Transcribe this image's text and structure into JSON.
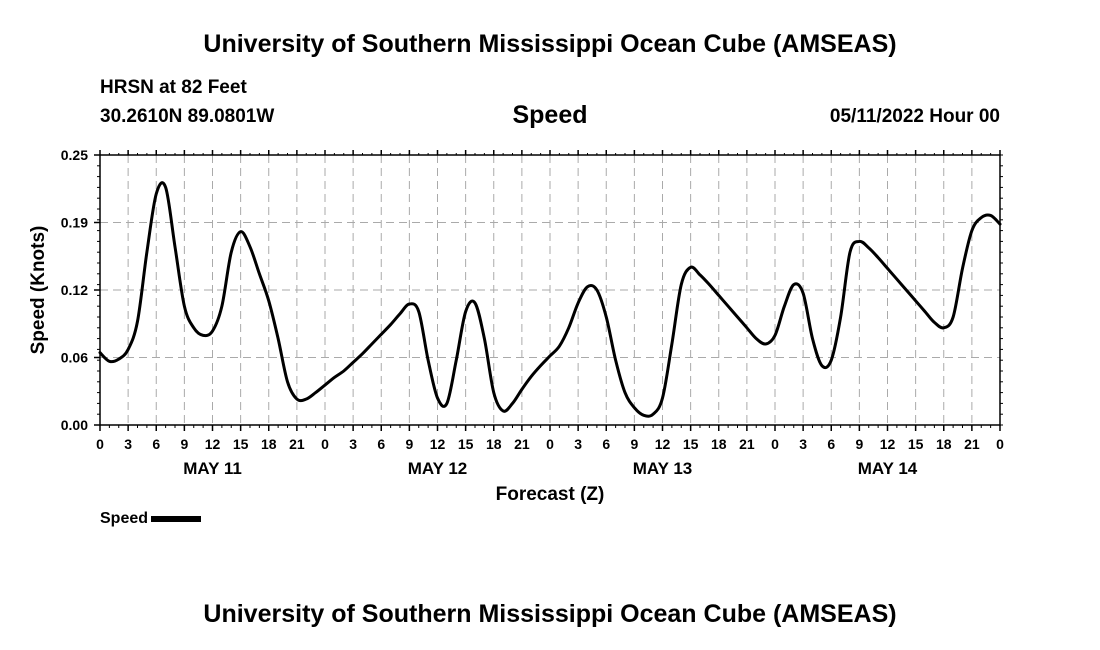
{
  "header": {
    "title": "University of Southern Mississippi Ocean Cube (AMSEAS)",
    "station": "HRSN at 82 Feet",
    "coords": "30.2610N  89.0801W",
    "variable": "Speed",
    "datetime": "05/11/2022 Hour 00"
  },
  "footer": {
    "title": "University of Southern Mississippi Ocean Cube (AMSEAS)"
  },
  "legend": {
    "label": "Speed"
  },
  "chart_data": {
    "type": "line",
    "title": "Speed",
    "xlabel": "Forecast (Z)",
    "ylabel": "Speed (Knots)",
    "xlim": [
      0,
      96
    ],
    "ylim": [
      0,
      0.25
    ],
    "yticks": [
      "0.00",
      "0.06",
      "0.12",
      "0.19",
      "0.25"
    ],
    "ytick_values": [
      0.0,
      0.0625,
      0.125,
      0.1875,
      0.25
    ],
    "xtick_labels": [
      "0",
      "3",
      "6",
      "9",
      "12",
      "15",
      "18",
      "21",
      "0",
      "3",
      "6",
      "9",
      "12",
      "15",
      "18",
      "21",
      "0",
      "3",
      "6",
      "9",
      "12",
      "15",
      "18",
      "21",
      "0",
      "3",
      "6",
      "9",
      "12",
      "15",
      "18",
      "21",
      "0"
    ],
    "day_labels": [
      {
        "label": "MAY 11",
        "hour": 12
      },
      {
        "label": "MAY 12",
        "hour": 36
      },
      {
        "label": "MAY 13",
        "hour": 60
      },
      {
        "label": "MAY 14",
        "hour": 84
      }
    ],
    "grid": true,
    "series": [
      {
        "name": "Speed",
        "x": [
          0,
          1,
          2,
          3,
          4,
          5,
          6,
          7,
          8,
          9,
          10,
          11,
          12,
          13,
          14,
          15,
          16,
          17,
          18,
          19,
          20,
          21,
          22,
          23,
          24,
          25,
          26,
          27,
          28,
          29,
          30,
          31,
          32,
          33,
          34,
          35,
          36,
          37,
          38,
          39,
          40,
          41,
          42,
          43,
          44,
          45,
          46,
          47,
          48,
          49,
          50,
          51,
          52,
          53,
          54,
          55,
          56,
          57,
          58,
          59,
          60,
          61,
          62,
          63,
          64,
          65,
          66,
          67,
          68,
          69,
          70,
          71,
          72,
          73,
          74,
          75,
          76,
          77,
          78,
          79,
          80,
          81,
          82,
          83,
          84,
          85,
          86,
          87,
          88,
          89,
          90,
          91,
          92,
          93,
          94,
          95,
          96
        ],
        "values": [
          0.067,
          0.059,
          0.061,
          0.07,
          0.096,
          0.16,
          0.214,
          0.22,
          0.165,
          0.11,
          0.09,
          0.083,
          0.087,
          0.11,
          0.16,
          0.179,
          0.165,
          0.14,
          0.115,
          0.08,
          0.04,
          0.024,
          0.024,
          0.03,
          0.037,
          0.044,
          0.05,
          0.058,
          0.066,
          0.075,
          0.084,
          0.093,
          0.103,
          0.112,
          0.105,
          0.06,
          0.025,
          0.02,
          0.06,
          0.105,
          0.113,
          0.08,
          0.03,
          0.013,
          0.02,
          0.033,
          0.045,
          0.055,
          0.064,
          0.073,
          0.09,
          0.113,
          0.128,
          0.125,
          0.1,
          0.06,
          0.03,
          0.016,
          0.009,
          0.01,
          0.025,
          0.075,
          0.13,
          0.146,
          0.139,
          0.13,
          0.12,
          0.11,
          0.1,
          0.09,
          0.08,
          0.075,
          0.083,
          0.11,
          0.13,
          0.122,
          0.08,
          0.055,
          0.06,
          0.1,
          0.16,
          0.17,
          0.164,
          0.155,
          0.145,
          0.135,
          0.125,
          0.115,
          0.105,
          0.095,
          0.09,
          0.1,
          0.145,
          0.18,
          0.192,
          0.194,
          0.186
        ]
      }
    ]
  }
}
